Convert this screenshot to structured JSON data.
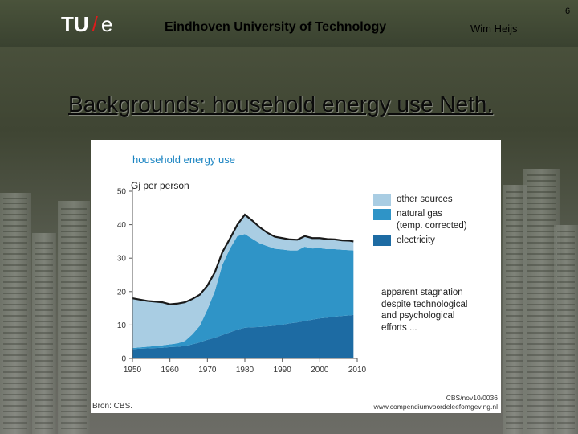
{
  "slide": {
    "logo_main": "TU",
    "logo_slash": "/",
    "logo_e": "e",
    "university": "Eindhoven University of Technology",
    "author": "Wim Heijs",
    "slide_number": "6",
    "title": "Backgrounds: household energy use Neth."
  },
  "figure": {
    "heading": "household energy use",
    "unit": "Gj per person",
    "legend": [
      {
        "label": "other sources",
        "color": "#a9cde3"
      },
      {
        "label": "natural gas\n(temp. corrected)",
        "color": "#2f94c7"
      },
      {
        "label": "electricity",
        "color": "#1d6ba3"
      }
    ],
    "note": "apparent stagnation despite technological and psychological efforts ...",
    "source_left": "Bron: CBS.",
    "source_right_1": "CBS/nov10/0036",
    "source_right_2": "www.compendiumvoordeleefomgeving.nl"
  },
  "chart_data": {
    "type": "area",
    "title": "household energy use",
    "ylabel": "Gj per person",
    "xlabel": "",
    "ylim": [
      0,
      50
    ],
    "xlim": [
      1950,
      2010
    ],
    "xticks": [
      1950,
      1960,
      1970,
      1980,
      1990,
      2000,
      2010
    ],
    "yticks": [
      0,
      10,
      20,
      30,
      40,
      50
    ],
    "x": [
      1950,
      1952,
      1954,
      1956,
      1958,
      1960,
      1962,
      1964,
      1966,
      1968,
      1970,
      1972,
      1974,
      1976,
      1978,
      1980,
      1982,
      1984,
      1986,
      1988,
      1990,
      1992,
      1994,
      1996,
      1998,
      2000,
      2002,
      2004,
      2006,
      2008,
      2009
    ],
    "series": [
      {
        "name": "electricity",
        "values": [
          2.8,
          2.9,
          3.0,
          3.1,
          3.2,
          3.4,
          3.5,
          3.7,
          4.2,
          4.8,
          5.6,
          6.2,
          7.0,
          7.8,
          8.6,
          9.2,
          9.3,
          9.4,
          9.6,
          9.8,
          10.1,
          10.5,
          10.8,
          11.2,
          11.6,
          12.0,
          12.2,
          12.5,
          12.7,
          12.9,
          13.0
        ]
      },
      {
        "name": "natural gas\n(temp. corrected)",
        "values": [
          0.3,
          0.4,
          0.5,
          0.6,
          0.7,
          0.8,
          1.0,
          1.5,
          3.0,
          5.0,
          9.0,
          14.0,
          21.0,
          25.0,
          28.0,
          28.0,
          26.5,
          25.0,
          24.0,
          23.0,
          22.5,
          21.8,
          21.5,
          22.2,
          21.3,
          21.0,
          20.5,
          20.2,
          19.8,
          19.5,
          19.3
        ]
      },
      {
        "name": "other sources",
        "values": [
          14.9,
          14.3,
          13.7,
          13.3,
          12.9,
          12.0,
          11.9,
          11.6,
          10.6,
          9.3,
          7.2,
          5.6,
          3.8,
          3.0,
          3.4,
          5.8,
          5.4,
          4.8,
          4.0,
          3.6,
          3.4,
          3.3,
          3.2,
          3.2,
          3.1,
          3.0,
          3.0,
          2.9,
          2.8,
          2.8,
          2.7
        ]
      }
    ]
  }
}
